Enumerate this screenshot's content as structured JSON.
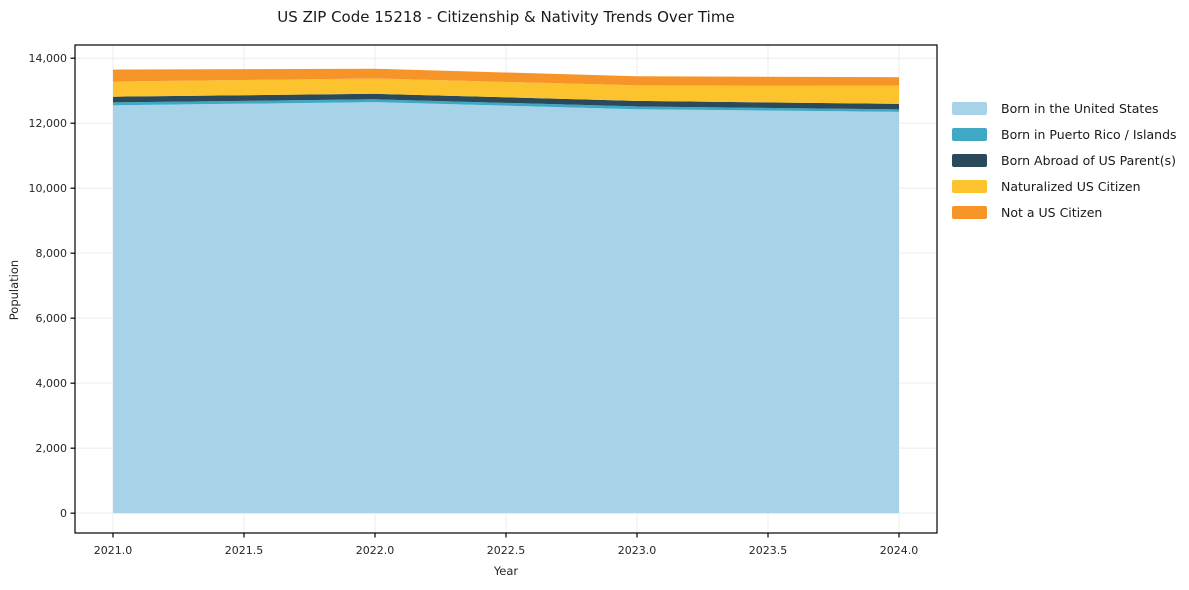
{
  "chart_data": {
    "type": "area",
    "stacked": true,
    "title": "US ZIP Code 15218 - Citizenship & Nativity Trends Over Time",
    "xlabel": "Year",
    "ylabel": "Population",
    "x": [
      2021,
      2022,
      2023,
      2024
    ],
    "series": [
      {
        "name": "Born in the United States",
        "color": "#a7d3e8",
        "values": [
          12550,
          12650,
          12430,
          12350
        ]
      },
      {
        "name": "Born in Puerto Rico / Islands",
        "color": "#3fa9c5",
        "values": [
          90,
          85,
          85,
          75
        ]
      },
      {
        "name": "Born Abroad of US Parent(s)",
        "color": "#2a4a5c",
        "values": [
          175,
          170,
          170,
          170
        ]
      },
      {
        "name": "Naturalized US Citizen",
        "color": "#fdc32f",
        "values": [
          465,
          470,
          480,
          560
        ]
      },
      {
        "name": "Not a US Citizen",
        "color": "#f79428",
        "values": [
          370,
          300,
          280,
          260
        ]
      }
    ],
    "xlim": [
      2020.855,
      2024.145
    ],
    "ylim": [
      -610,
      14406
    ],
    "xticks": {
      "values": [
        2021.0,
        2021.5,
        2022.0,
        2022.5,
        2023.0,
        2023.5,
        2024.0
      ],
      "labels": [
        "2021.0",
        "2021.5",
        "2022.0",
        "2022.5",
        "2023.0",
        "2023.5",
        "2024.0"
      ]
    },
    "yticks": {
      "values": [
        0,
        2000,
        4000,
        6000,
        8000,
        10000,
        12000,
        14000
      ],
      "labels": [
        "0",
        "2,000",
        "4,000",
        "6,000",
        "8,000",
        "10,000",
        "12,000",
        "14,000"
      ]
    },
    "grid": true,
    "grid_color": "#ececec",
    "spine_color": "#000000",
    "tick_text_color": "#262626",
    "legend_position": "right-outside",
    "background_color": "#ffffff"
  }
}
